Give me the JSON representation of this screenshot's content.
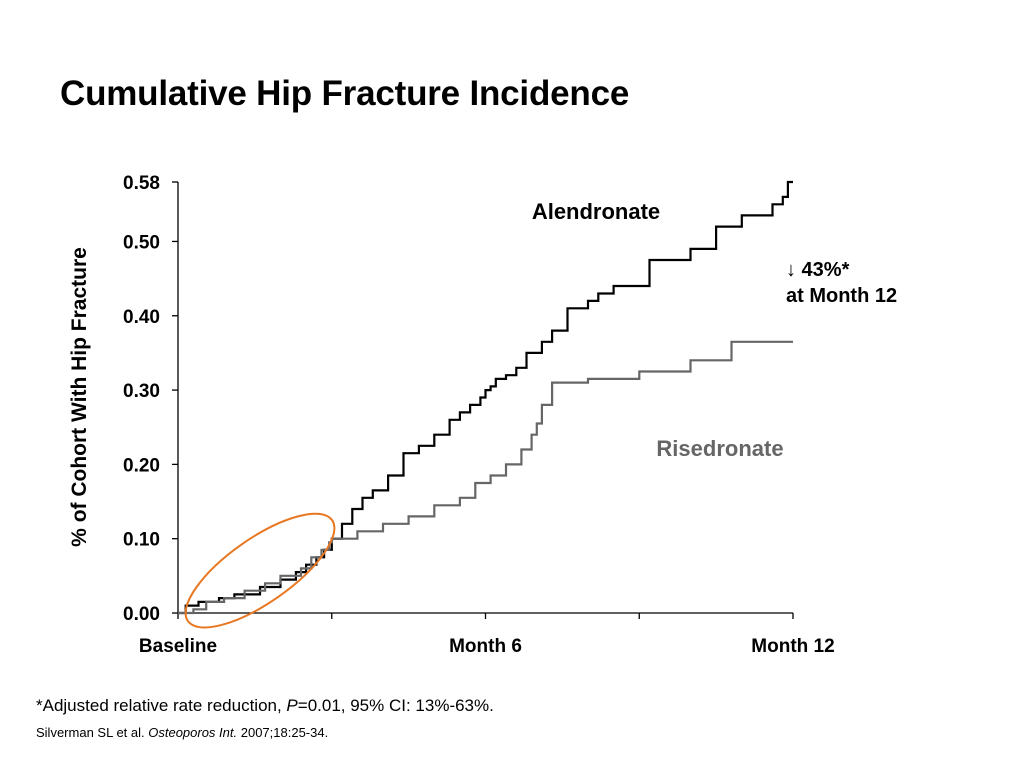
{
  "slide": {
    "title": "Cumulative Hip Fracture Incidence",
    "footnote": {
      "prefix": "*Adjusted relative rate reduction, ",
      "p_symbol": "P",
      "suffix": "=0.01, 95% CI: 13%-63%."
    },
    "citation": {
      "authors": "Silverman SL et al. ",
      "journal": "Osteoporos Int.",
      "details": " 2007;18:25-34."
    }
  },
  "chart_data": {
    "type": "line",
    "title": "Cumulative Hip Fracture Incidence",
    "ylabel": "% of Cohort With Hip Fracture",
    "xlabel": "",
    "x_units": "months",
    "xlim": [
      0,
      12
    ],
    "ylim": [
      0,
      0.58
    ],
    "y_ticks": [
      0.0,
      0.1,
      0.2,
      0.3,
      0.4,
      0.5,
      0.58
    ],
    "y_tick_labels": [
      "0.00",
      "0.10",
      "0.20",
      "0.30",
      "0.40",
      "0.50",
      "0.58"
    ],
    "x_ticks": [
      0,
      3,
      6,
      9,
      12
    ],
    "x_tick_labels": [
      {
        "x": 0,
        "label": "Baseline"
      },
      {
        "x": 6,
        "label": "Month 6"
      },
      {
        "x": 12,
        "label": "Month 12"
      }
    ],
    "grid": false,
    "step": true,
    "series": [
      {
        "name": "Alendronate",
        "color": "#000000",
        "x": [
          0,
          0.15,
          0.4,
          0.8,
          1.1,
          1.6,
          2.0,
          2.3,
          2.5,
          2.7,
          2.85,
          3.0,
          3.2,
          3.4,
          3.6,
          3.8,
          4.1,
          4.4,
          4.7,
          5.0,
          5.3,
          5.5,
          5.7,
          5.9,
          6.0,
          6.1,
          6.2,
          6.4,
          6.6,
          6.8,
          7.1,
          7.3,
          7.6,
          8.0,
          8.2,
          8.5,
          9.2,
          10.0,
          10.5,
          11.0,
          11.6,
          11.8,
          11.9,
          12.0
        ],
        "y": [
          0.0,
          0.01,
          0.015,
          0.02,
          0.025,
          0.035,
          0.045,
          0.055,
          0.065,
          0.075,
          0.085,
          0.1,
          0.12,
          0.14,
          0.155,
          0.165,
          0.185,
          0.215,
          0.225,
          0.24,
          0.26,
          0.27,
          0.28,
          0.29,
          0.3,
          0.305,
          0.315,
          0.32,
          0.33,
          0.35,
          0.365,
          0.38,
          0.41,
          0.42,
          0.43,
          0.44,
          0.475,
          0.49,
          0.52,
          0.535,
          0.55,
          0.56,
          0.58,
          0.58
        ]
      },
      {
        "name": "Risedronate",
        "color": "#666666",
        "x": [
          0,
          0.3,
          0.55,
          0.9,
          1.3,
          1.7,
          2.0,
          2.4,
          2.6,
          2.8,
          2.95,
          3.0,
          3.5,
          4.0,
          4.5,
          5.0,
          5.5,
          5.8,
          6.1,
          6.4,
          6.7,
          6.9,
          7.0,
          7.1,
          7.3,
          8.0,
          8.5,
          9.0,
          10.0,
          10.8,
          11.5,
          12.0
        ],
        "y": [
          0.0,
          0.005,
          0.015,
          0.02,
          0.03,
          0.04,
          0.05,
          0.06,
          0.075,
          0.085,
          0.095,
          0.1,
          0.11,
          0.12,
          0.13,
          0.145,
          0.155,
          0.175,
          0.185,
          0.2,
          0.22,
          0.24,
          0.255,
          0.28,
          0.31,
          0.315,
          0.315,
          0.325,
          0.34,
          0.365,
          0.365,
          0.365
        ]
      }
    ],
    "annotations": [
      {
        "id": "reduction",
        "lines": [
          "↓ 43%*",
          "at Month 12"
        ]
      },
      {
        "id": "early-period-highlight",
        "shape": "ellipse",
        "color": "#e87722",
        "x_center": 1.6,
        "y_center": 0.057,
        "x_radius": 2.95,
        "y_radius": 0.045,
        "rotation_deg": -35
      }
    ]
  }
}
